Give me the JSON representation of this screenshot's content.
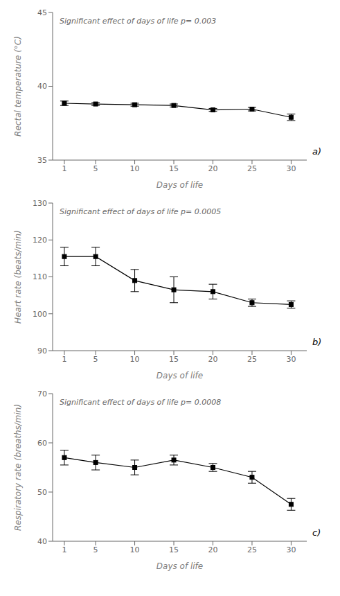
{
  "chart_data": [
    {
      "type": "line",
      "annotations": [
        "Significant effect of days of life p= 0.003",
        "a)"
      ],
      "xlabel": "Days of life",
      "ylabel": "Rectal temperature (°C)",
      "x": [
        1,
        5,
        10,
        15,
        20,
        25,
        30
      ],
      "xlim": [
        -0.5,
        32
      ],
      "xticks": [
        1,
        5,
        10,
        15,
        20,
        25,
        30
      ],
      "ylim": [
        35,
        45
      ],
      "yticks": [
        35,
        40,
        45
      ],
      "grid": false,
      "series": [
        {
          "color": "#000000",
          "marker": "square",
          "values": [
            38.85,
            38.8,
            38.75,
            38.7,
            38.4,
            38.45,
            37.9
          ],
          "yerr": [
            0.15,
            0.1,
            0.1,
            0.1,
            0.1,
            0.12,
            0.22
          ]
        }
      ]
    },
    {
      "type": "line",
      "annotations": [
        "Significant effect of days of life p= 0.0005",
        "b)"
      ],
      "xlabel": "Days of life",
      "ylabel": "Heart rate (beats/min)",
      "x": [
        1,
        5,
        10,
        15,
        20,
        25,
        30
      ],
      "xlim": [
        -0.5,
        32
      ],
      "xticks": [
        1,
        5,
        10,
        15,
        20,
        25,
        30
      ],
      "ylim": [
        90,
        130
      ],
      "yticks": [
        90,
        100,
        110,
        120,
        130
      ],
      "grid": false,
      "series": [
        {
          "color": "#000000",
          "marker": "square",
          "values": [
            115.5,
            115.5,
            109.0,
            106.5,
            106.0,
            103.0,
            102.5
          ],
          "yerr": [
            2.5,
            2.5,
            3.0,
            3.5,
            2.0,
            1.0,
            1.0
          ]
        }
      ]
    },
    {
      "type": "line",
      "annotations": [
        "Significant effect of days of life p= 0.0008",
        "c)"
      ],
      "xlabel": "Days of life",
      "ylabel": "Respiratory rate (breaths/min)",
      "x": [
        1,
        5,
        10,
        15,
        20,
        25,
        30
      ],
      "xlim": [
        -0.5,
        32
      ],
      "xticks": [
        1,
        5,
        10,
        15,
        20,
        25,
        30
      ],
      "ylim": [
        40,
        70
      ],
      "yticks": [
        40,
        50,
        60,
        70
      ],
      "grid": false,
      "series": [
        {
          "color": "#000000",
          "marker": "square",
          "values": [
            57.0,
            56.0,
            55.0,
            56.5,
            55.0,
            53.0,
            47.5
          ],
          "yerr": [
            1.5,
            1.5,
            1.5,
            1.0,
            0.8,
            1.2,
            1.2
          ]
        }
      ]
    }
  ]
}
